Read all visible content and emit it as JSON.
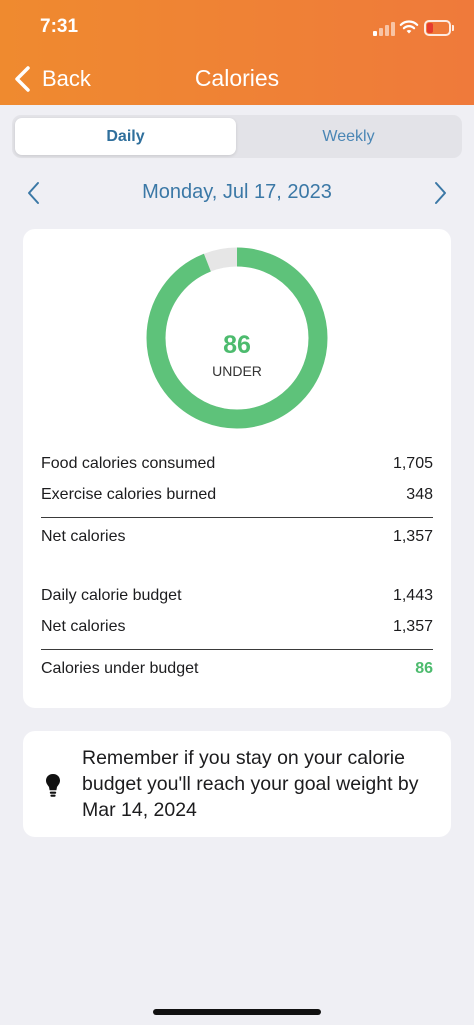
{
  "status": {
    "time": "7:31"
  },
  "nav": {
    "back_label": "Back",
    "title": "Calories"
  },
  "tabs": [
    {
      "label": "Daily",
      "selected": true
    },
    {
      "label": "Weekly",
      "selected": false
    }
  ],
  "date": {
    "label": "Monday, Jul 17, 2023"
  },
  "summary": {
    "donut": {
      "value": "86",
      "label": "UNDER",
      "fraction_used": 0.94
    },
    "rows": [
      {
        "label": "Food calories consumed",
        "value": "1,705"
      },
      {
        "label": "Exercise calories burned",
        "value": "348"
      },
      {
        "label": "Net calories",
        "value": "1,357"
      },
      {
        "label": "Daily calorie budget",
        "value": "1,443"
      },
      {
        "label": "Net calories",
        "value": "1,357"
      },
      {
        "label": "Calories under budget",
        "value": "86"
      }
    ]
  },
  "tip": {
    "text": "Remember if you stay on your calorie budget you'll reach your goal weight by Mar 14, 2024"
  },
  "colors": {
    "header": "#ef8231",
    "accent_blue": "#3b78a6",
    "green": "#4dbb6e",
    "ring_track": "#e6e6e6"
  }
}
